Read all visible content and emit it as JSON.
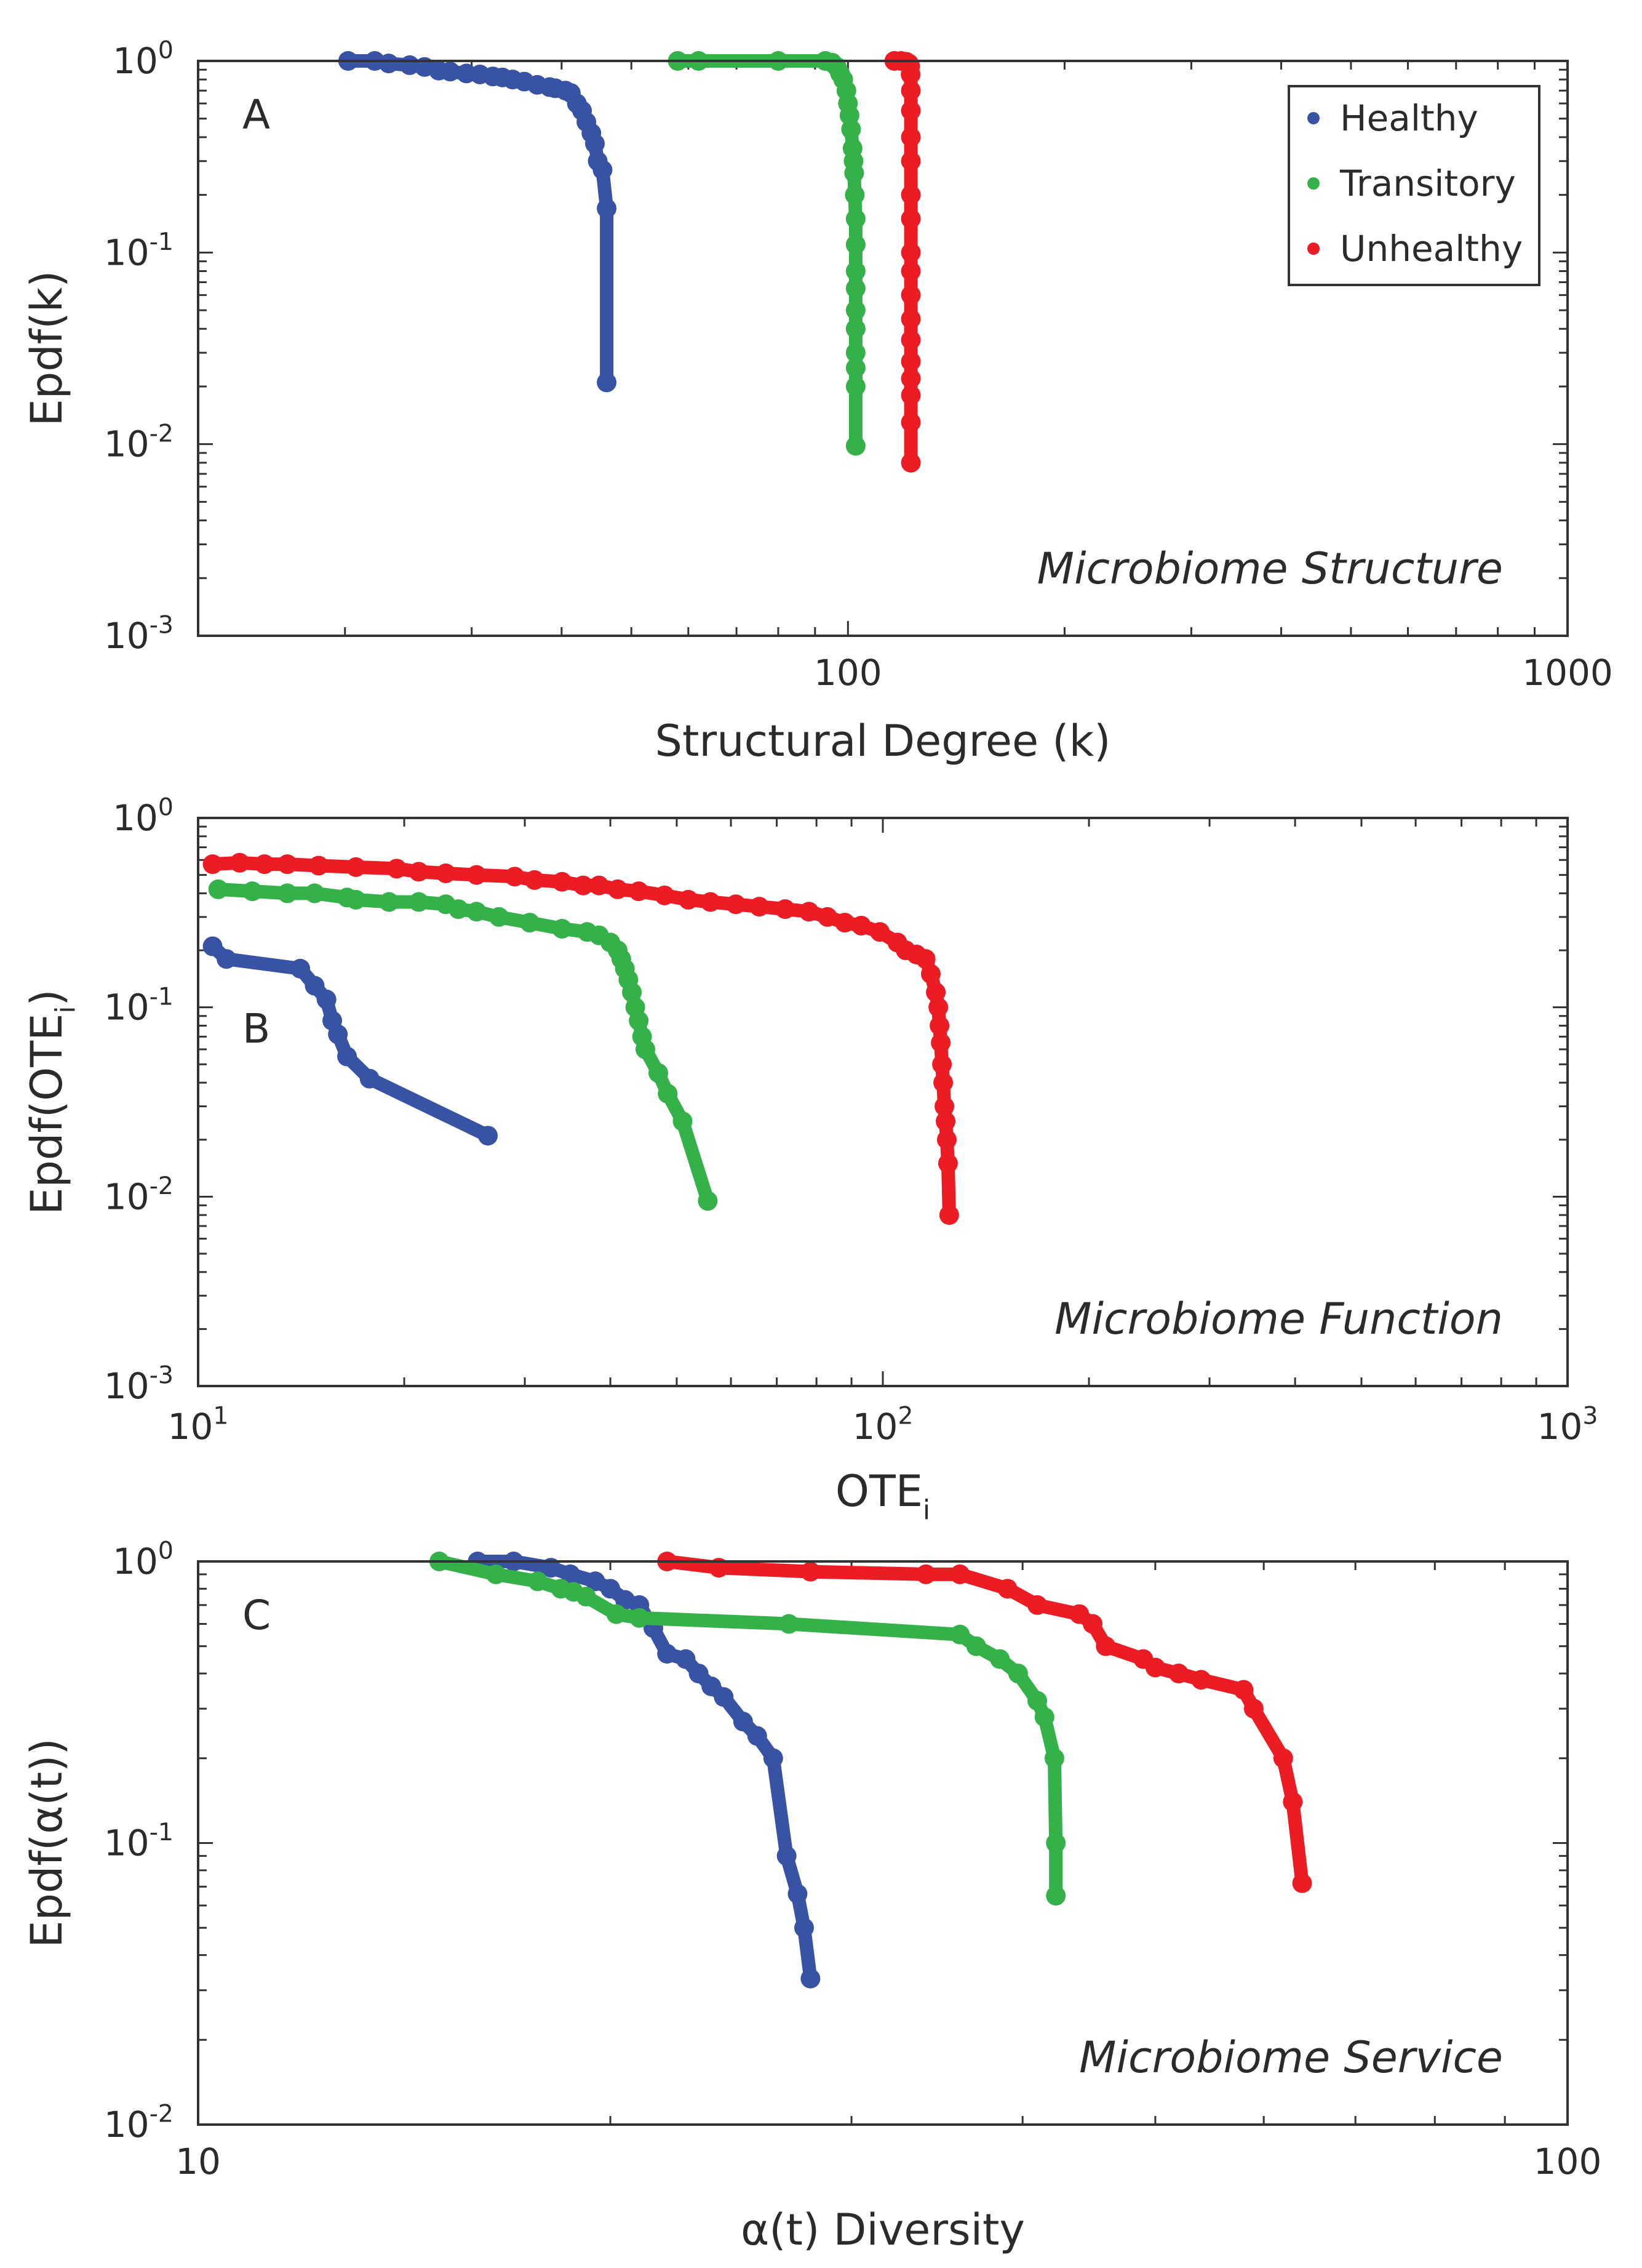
{
  "colors": {
    "Healthy": "#3953a4",
    "Transitory": "#35b14a",
    "Unhealthy": "#ec1c24"
  },
  "chart_data": [
    {
      "type": "line",
      "panel_label": "A",
      "annotation": "Microbiome Structure",
      "xlabel": "Structural Degree (k)",
      "ylabel": "Epdf(k)",
      "xscale": "log",
      "yscale": "log",
      "xlim": [
        12.5,
        1000
      ],
      "ylim": [
        0.001,
        1
      ],
      "xticks": [
        100,
        1000
      ],
      "xtick_labels": [
        "100",
        "1000"
      ],
      "yticks": [
        0.001,
        0.01,
        0.1,
        1
      ],
      "ytick_labels": [
        {
          "base": "10",
          "exp": "-3"
        },
        {
          "base": "10",
          "exp": "-2"
        },
        {
          "base": "10",
          "exp": "-1"
        },
        {
          "base": "10",
          "exp": "0"
        }
      ],
      "legend": {
        "position": "top-right",
        "entries": [
          "Healthy",
          "Transitory",
          "Unhealthy"
        ]
      },
      "series": [
        {
          "name": "Healthy",
          "x": [
            20.2,
            22,
            23,
            24.6,
            25.8,
            27,
            28,
            29.5,
            30.8,
            32.1,
            33.1,
            34.2,
            35.5,
            37,
            38.5,
            39.2,
            40.5,
            41.2,
            42,
            42.7,
            43.3,
            44,
            44.5,
            44.9,
            45.6,
            46.2,
            46.2
          ],
          "y": [
            1,
            1,
            0.97,
            0.95,
            0.93,
            0.89,
            0.88,
            0.86,
            0.85,
            0.83,
            0.82,
            0.8,
            0.78,
            0.75,
            0.73,
            0.72,
            0.7,
            0.68,
            0.6,
            0.55,
            0.48,
            0.42,
            0.37,
            0.3,
            0.27,
            0.17,
            0.021
          ]
        },
        {
          "name": "Transitory",
          "x": [
            58,
            62,
            80,
            93,
            95,
            96.5,
            97.5,
            98.5,
            99.5,
            100,
            100.5,
            101,
            101.5,
            101.8,
            102,
            102.2,
            102.5,
            102.5,
            102.5,
            102.5,
            102.5,
            102.5,
            102.5,
            102.5,
            102.5,
            102.5
          ],
          "y": [
            1,
            1,
            1,
            1,
            0.98,
            0.93,
            0.86,
            0.8,
            0.7,
            0.6,
            0.52,
            0.44,
            0.35,
            0.3,
            0.26,
            0.2,
            0.15,
            0.11,
            0.08,
            0.065,
            0.05,
            0.04,
            0.03,
            0.025,
            0.02,
            0.0098
          ]
        },
        {
          "name": "Unhealthy",
          "x": [
            116,
            118.5,
            120.5,
            121.5,
            122,
            122.2,
            122.3,
            122.3,
            122.3,
            122.3,
            122.3,
            122.3,
            122.3,
            122.3,
            122.3,
            122.3,
            122.3,
            122.3,
            122.3,
            122.3,
            122.3,
            122.3
          ],
          "y": [
            1,
            1,
            0.99,
            0.97,
            0.94,
            0.85,
            0.7,
            0.55,
            0.4,
            0.3,
            0.2,
            0.15,
            0.1,
            0.08,
            0.06,
            0.045,
            0.035,
            0.027,
            0.022,
            0.018,
            0.013,
            0.008
          ]
        }
      ]
    },
    {
      "type": "line",
      "panel_label": "B",
      "annotation": "Microbiome Function",
      "xlabel": "OTE",
      "xlabel_sub": "i",
      "ylabel": "Epdf(OTE",
      "ylabel_sub": "i",
      "ylabel_suffix": ")",
      "xscale": "log",
      "yscale": "log",
      "xlim": [
        10,
        1000
      ],
      "ylim": [
        0.001,
        1
      ],
      "xticks": [
        10,
        100,
        1000
      ],
      "xtick_labels": [
        {
          "base": "10",
          "exp": "1"
        },
        {
          "base": "10",
          "exp": "2"
        },
        {
          "base": "10",
          "exp": "3"
        }
      ],
      "yticks": [
        0.001,
        0.01,
        0.1,
        1
      ],
      "ytick_labels": [
        {
          "base": "10",
          "exp": "-3"
        },
        {
          "base": "10",
          "exp": "-2"
        },
        {
          "base": "10",
          "exp": "-1"
        },
        {
          "base": "10",
          "exp": "0"
        }
      ],
      "series": [
        {
          "name": "Healthy",
          "x": [
            10.5,
            11,
            14.1,
            14.8,
            15.4,
            15.7,
            16,
            16.5,
            17.8,
            26.5
          ],
          "y": [
            0.21,
            0.18,
            0.16,
            0.13,
            0.11,
            0.085,
            0.072,
            0.055,
            0.042,
            0.021
          ]
        },
        {
          "name": "Transitory",
          "x": [
            10.7,
            12,
            13.5,
            14.8,
            16.5,
            17,
            19,
            21,
            23,
            24,
            25.5,
            27.5,
            30.5,
            34,
            37,
            38.5,
            40,
            41,
            41.5,
            42,
            42.5,
            43,
            43.5,
            44,
            44.5,
            45,
            47,
            48.5,
            51,
            55.5
          ],
          "y": [
            0.42,
            0.41,
            0.4,
            0.4,
            0.38,
            0.37,
            0.36,
            0.36,
            0.35,
            0.33,
            0.32,
            0.3,
            0.28,
            0.26,
            0.25,
            0.24,
            0.22,
            0.2,
            0.18,
            0.16,
            0.14,
            0.12,
            0.1,
            0.085,
            0.07,
            0.06,
            0.045,
            0.035,
            0.025,
            0.0095
          ]
        },
        {
          "name": "Unhealthy",
          "x": [
            10.5,
            11.5,
            12.5,
            13.5,
            15,
            17,
            19.5,
            21,
            23,
            25.5,
            29,
            31,
            34,
            36.5,
            38.5,
            41,
            44,
            48,
            52,
            56,
            61,
            66,
            72,
            78,
            83,
            88,
            93,
            99,
            105,
            108,
            112,
            115.5,
            117.5,
            119.5,
            120.5,
            121,
            121.5,
            122,
            122.5,
            123,
            123.5,
            124,
            124.5,
            125
          ],
          "y": [
            0.57,
            0.58,
            0.57,
            0.57,
            0.56,
            0.55,
            0.54,
            0.52,
            0.51,
            0.5,
            0.49,
            0.47,
            0.46,
            0.44,
            0.44,
            0.42,
            0.41,
            0.39,
            0.37,
            0.36,
            0.35,
            0.34,
            0.33,
            0.32,
            0.3,
            0.28,
            0.27,
            0.25,
            0.22,
            0.2,
            0.19,
            0.18,
            0.15,
            0.12,
            0.1,
            0.08,
            0.065,
            0.05,
            0.04,
            0.03,
            0.025,
            0.02,
            0.015,
            0.008
          ]
        }
      ]
    },
    {
      "type": "line",
      "panel_label": "C",
      "annotation": "Microbiome Service",
      "xlabel": "α(t) Diversity",
      "ylabel": "Epdf(α(t))",
      "xscale": "log",
      "yscale": "log",
      "xlim": [
        10,
        100
      ],
      "ylim": [
        0.01,
        1
      ],
      "xticks": [
        10,
        100
      ],
      "xtick_labels": [
        "10",
        "100"
      ],
      "yticks": [
        0.01,
        0.1,
        1
      ],
      "ytick_labels": [
        {
          "base": "10",
          "exp": "-2"
        },
        {
          "base": "10",
          "exp": "-1"
        },
        {
          "base": "10",
          "exp": "0"
        }
      ],
      "series": [
        {
          "name": "Healthy",
          "x": [
            16,
            17,
            18.1,
            18.7,
            19.5,
            20,
            20.5,
            21,
            21.5,
            22,
            22.7,
            23.2,
            23.7,
            24.2,
            25,
            25.6,
            26.3,
            26.9,
            27.4,
            27.7,
            28
          ],
          "y": [
            1,
            1,
            0.95,
            0.9,
            0.85,
            0.8,
            0.73,
            0.7,
            0.58,
            0.47,
            0.45,
            0.4,
            0.36,
            0.33,
            0.27,
            0.24,
            0.2,
            0.09,
            0.066,
            0.05,
            0.033
          ]
        },
        {
          "name": "Transitory",
          "x": [
            15,
            16.5,
            17.7,
            18.4,
            18.8,
            19.2,
            20.2,
            21,
            27,
            36,
            37,
            38.5,
            39.7,
            41,
            41.5,
            42.2,
            42.3,
            42.3
          ],
          "y": [
            1,
            0.9,
            0.85,
            0.8,
            0.78,
            0.75,
            0.65,
            0.63,
            0.6,
            0.55,
            0.5,
            0.45,
            0.4,
            0.32,
            0.28,
            0.2,
            0.1,
            0.065
          ]
        },
        {
          "name": "Unhealthy",
          "x": [
            22,
            24,
            28,
            34,
            36,
            39,
            41,
            44,
            45,
            46,
            49,
            50,
            52,
            54,
            58,
            59,
            62,
            63,
            64
          ],
          "y": [
            1,
            0.95,
            0.92,
            0.9,
            0.9,
            0.8,
            0.7,
            0.65,
            0.6,
            0.5,
            0.45,
            0.42,
            0.4,
            0.38,
            0.35,
            0.3,
            0.2,
            0.14,
            0.072
          ]
        }
      ]
    }
  ]
}
